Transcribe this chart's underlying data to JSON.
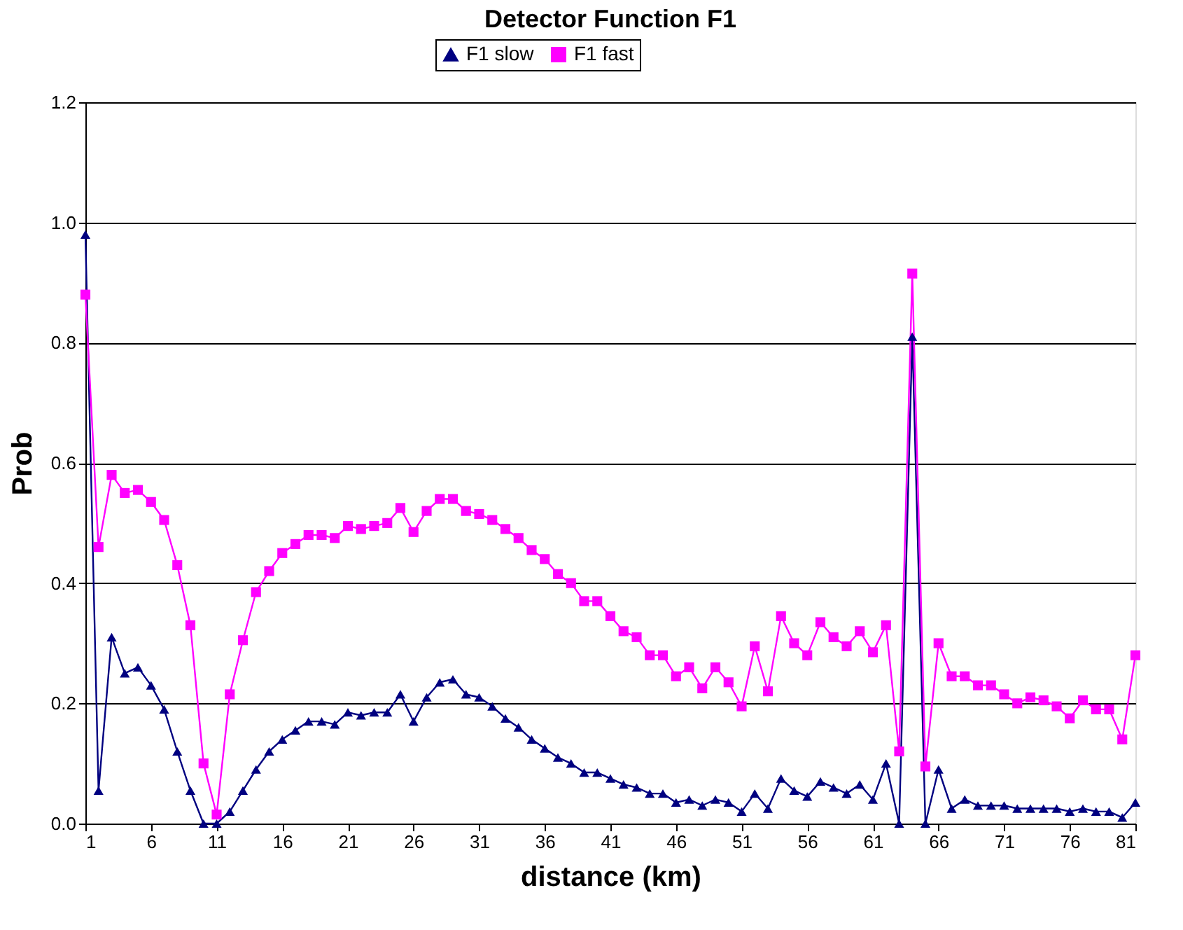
{
  "chart_data": {
    "type": "line",
    "title": "Detector Function F1",
    "xlabel": "distance (km)",
    "ylabel": "Prob",
    "x": [
      1,
      2,
      3,
      4,
      5,
      6,
      7,
      8,
      9,
      10,
      11,
      12,
      13,
      14,
      15,
      16,
      17,
      18,
      19,
      20,
      21,
      22,
      23,
      24,
      25,
      26,
      27,
      28,
      29,
      30,
      31,
      32,
      33,
      34,
      35,
      36,
      37,
      38,
      39,
      40,
      41,
      42,
      43,
      44,
      45,
      46,
      47,
      48,
      49,
      50,
      51,
      52,
      53,
      54,
      55,
      56,
      57,
      58,
      59,
      60,
      61,
      62,
      63,
      64,
      65,
      66,
      67,
      68,
      69,
      70,
      71,
      72,
      73,
      74,
      75,
      76,
      77,
      78,
      79,
      80,
      81
    ],
    "series": [
      {
        "name": "F1 slow",
        "color": "#000080",
        "marker": "triangle",
        "values": [
          0.98,
          0.055,
          0.31,
          0.25,
          0.26,
          0.23,
          0.19,
          0.12,
          0.055,
          0.0,
          0.0,
          0.02,
          0.055,
          0.09,
          0.12,
          0.14,
          0.155,
          0.17,
          0.17,
          0.165,
          0.185,
          0.18,
          0.185,
          0.185,
          0.215,
          0.17,
          0.21,
          0.235,
          0.24,
          0.215,
          0.21,
          0.195,
          0.175,
          0.16,
          0.14,
          0.125,
          0.11,
          0.1,
          0.085,
          0.085,
          0.075,
          0.065,
          0.06,
          0.05,
          0.05,
          0.035,
          0.04,
          0.03,
          0.04,
          0.035,
          0.02,
          0.05,
          0.025,
          0.075,
          0.055,
          0.045,
          0.07,
          0.06,
          0.05,
          0.065,
          0.04,
          0.1,
          0.0,
          0.81,
          0.0,
          0.09,
          0.025,
          0.04,
          0.03,
          0.03,
          0.03,
          0.025,
          0.025,
          0.025,
          0.025,
          0.02,
          0.025,
          0.02,
          0.02,
          0.01,
          0.035
        ]
      },
      {
        "name": "F1 fast",
        "color": "#ff00ff",
        "marker": "square",
        "values": [
          0.88,
          0.46,
          0.58,
          0.55,
          0.555,
          0.535,
          0.505,
          0.43,
          0.33,
          0.1,
          0.015,
          0.215,
          0.305,
          0.385,
          0.42,
          0.45,
          0.465,
          0.48,
          0.48,
          0.475,
          0.495,
          0.49,
          0.495,
          0.5,
          0.525,
          0.485,
          0.52,
          0.54,
          0.54,
          0.52,
          0.515,
          0.505,
          0.49,
          0.475,
          0.455,
          0.44,
          0.415,
          0.4,
          0.37,
          0.37,
          0.345,
          0.32,
          0.31,
          0.28,
          0.28,
          0.245,
          0.26,
          0.225,
          0.26,
          0.235,
          0.195,
          0.295,
          0.22,
          0.345,
          0.3,
          0.28,
          0.335,
          0.31,
          0.295,
          0.32,
          0.285,
          0.33,
          0.12,
          0.915,
          0.095,
          0.3,
          0.245,
          0.245,
          0.23,
          0.23,
          0.215,
          0.2,
          0.21,
          0.205,
          0.195,
          0.175,
          0.205,
          0.19,
          0.19,
          0.14,
          0.28
        ]
      }
    ],
    "xlim": [
      1,
      81
    ],
    "xticks": [
      1,
      6,
      11,
      16,
      21,
      26,
      31,
      36,
      41,
      46,
      51,
      56,
      61,
      66,
      71,
      76,
      81
    ],
    "ylim": [
      0,
      1.2
    ],
    "yticks": [
      {
        "value": 0,
        "label": "0.0"
      },
      {
        "value": 0.2,
        "label": "0.2"
      },
      {
        "value": 0.4,
        "label": "0.4"
      },
      {
        "value": 0.6,
        "label": "0.6"
      },
      {
        "value": 0.8,
        "label": "0.8"
      },
      {
        "value": 1.0,
        "label": "1.0"
      },
      {
        "value": 1.2,
        "label": "1.2"
      }
    ],
    "grid": "y",
    "legend": "top",
    "line_style": "solid"
  }
}
